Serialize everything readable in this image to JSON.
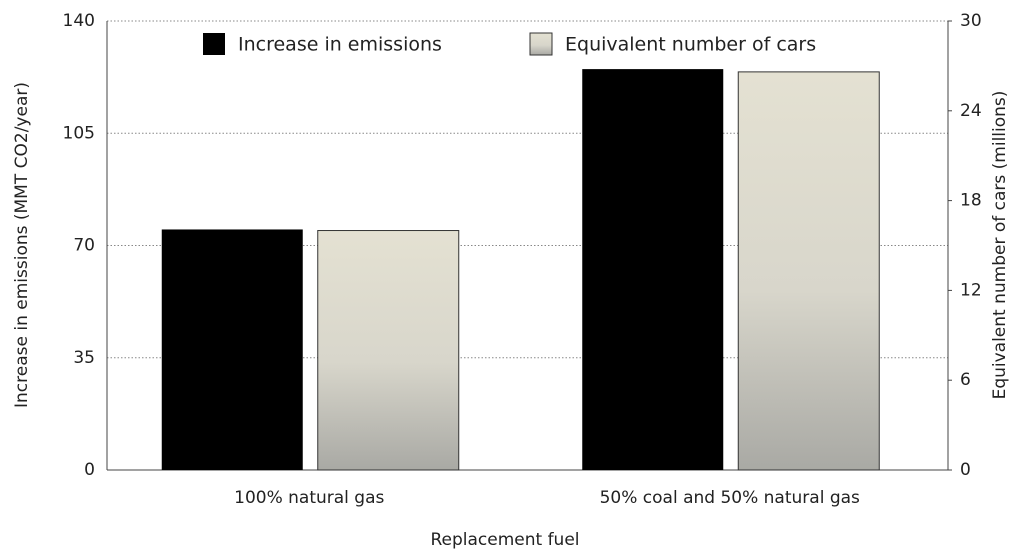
{
  "chart_data": {
    "type": "bar",
    "xlabel": "Replacement fuel",
    "ylabel": "Increase in emissions (MMT CO2/year)",
    "y2label": "Equivalent number of cars (millions)",
    "categories": [
      "100% natural gas",
      "50% coal and 50% natural gas"
    ],
    "series": [
      {
        "name": "Increase in emissions",
        "color": "#000000",
        "values": [
          75,
          125
        ]
      },
      {
        "name": "Equivalent number of cars",
        "color": "#e4e1d2",
        "axis": "y2",
        "values": [
          16,
          26.6
        ]
      }
    ],
    "ylim": [
      0,
      140
    ],
    "yticks": [
      0,
      35,
      70,
      105,
      140
    ],
    "y2lim": [
      0,
      30
    ],
    "y2ticks": [
      0,
      6,
      12,
      18,
      24,
      30
    ],
    "grid": true,
    "legend": "top"
  }
}
